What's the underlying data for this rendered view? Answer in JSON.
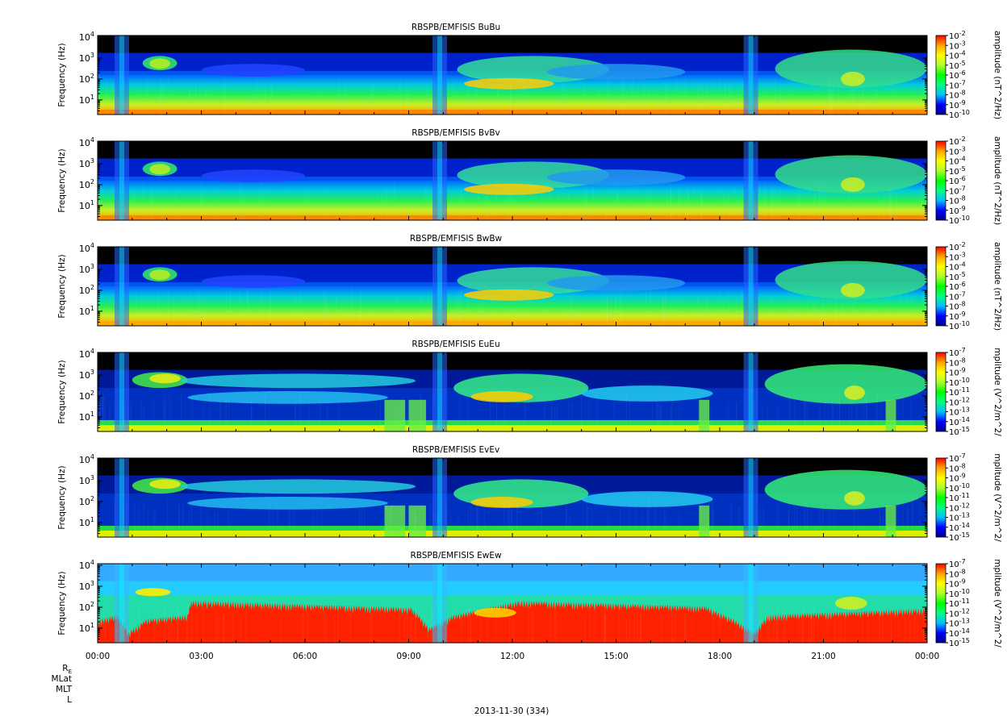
{
  "chart_data": [
    {
      "type": "heatmap",
      "title": "RBSPB/EMFISIS  BuBu",
      "ylabel": "Frequency (Hz)",
      "y_scale": "log",
      "ylim": [
        2,
        12000
      ],
      "y_ticks": [
        10,
        100,
        1000,
        10000
      ],
      "y_tick_labels": [
        "10",
        "10",
        "10",
        "10"
      ],
      "y_tick_exponents": [
        "1",
        "2",
        "3",
        "4"
      ],
      "colorbar": {
        "label": "amplitude (nT^2/Hz)",
        "scale": "log",
        "range": [
          1e-10,
          0.01
        ],
        "tick_exponents": [
          "-2",
          "-3",
          "-4",
          "-5",
          "-6",
          "-7",
          "-8",
          "-9",
          "-10"
        ],
        "colormap": [
          "#00008b",
          "#0000ff",
          "#00bfff",
          "#00ff7f",
          "#00ff00",
          "#adff2f",
          "#ffff00",
          "#ffa500",
          "#ff0000"
        ]
      },
      "panel_style": "mag"
    },
    {
      "type": "heatmap",
      "title": "RBSPB/EMFISIS  BvBv",
      "ylabel": "Frequency (Hz)",
      "y_scale": "log",
      "ylim": [
        2,
        12000
      ],
      "y_ticks": [
        10,
        100,
        1000,
        10000
      ],
      "y_tick_labels": [
        "10",
        "10",
        "10",
        "10"
      ],
      "y_tick_exponents": [
        "1",
        "2",
        "3",
        "4"
      ],
      "colorbar": {
        "label": "amplitude (nT^2/Hz)",
        "scale": "log",
        "range": [
          1e-10,
          0.01
        ],
        "tick_exponents": [
          "-2",
          "-3",
          "-4",
          "-5",
          "-6",
          "-7",
          "-8",
          "-9",
          "-10"
        ],
        "colormap": [
          "#00008b",
          "#0000ff",
          "#00bfff",
          "#00ff7f",
          "#00ff00",
          "#adff2f",
          "#ffff00",
          "#ffa500",
          "#ff0000"
        ]
      },
      "panel_style": "mag"
    },
    {
      "type": "heatmap",
      "title": "RBSPB/EMFISIS  BwBw",
      "ylabel": "Frequency (Hz)",
      "y_scale": "log",
      "ylim": [
        2,
        12000
      ],
      "y_ticks": [
        10,
        100,
        1000,
        10000
      ],
      "y_tick_labels": [
        "10",
        "10",
        "10",
        "10"
      ],
      "y_tick_exponents": [
        "1",
        "2",
        "3",
        "4"
      ],
      "colorbar": {
        "label": "amplitude (nT^2/Hz)",
        "scale": "log",
        "range": [
          1e-10,
          0.01
        ],
        "tick_exponents": [
          "-2",
          "-3",
          "-4",
          "-5",
          "-6",
          "-7",
          "-8",
          "-9",
          "-10"
        ],
        "colormap": [
          "#00008b",
          "#0000ff",
          "#00bfff",
          "#00ff7f",
          "#00ff00",
          "#adff2f",
          "#ffff00",
          "#ffa500",
          "#ff0000"
        ]
      },
      "panel_style": "mag_w"
    },
    {
      "type": "heatmap",
      "title": "RBSPB/EMFISIS  EuEu",
      "ylabel": "Frequency (Hz)",
      "y_scale": "log",
      "ylim": [
        2,
        12000
      ],
      "y_ticks": [
        10,
        100,
        1000,
        10000
      ],
      "y_tick_labels": [
        "10",
        "10",
        "10",
        "10"
      ],
      "y_tick_exponents": [
        "1",
        "2",
        "3",
        "4"
      ],
      "colorbar": {
        "label": "mplitude (V^2/m^2/",
        "scale": "log",
        "range": [
          1e-15,
          1e-07
        ],
        "tick_exponents": [
          "-7",
          "-8",
          "-9",
          "-10",
          "-11",
          "-12",
          "-13",
          "-14",
          "-15"
        ],
        "colormap": [
          "#00008b",
          "#0000ff",
          "#00bfff",
          "#00ff7f",
          "#00ff00",
          "#adff2f",
          "#ffff00",
          "#ffa500",
          "#ff0000"
        ]
      },
      "panel_style": "elec"
    },
    {
      "type": "heatmap",
      "title": "RBSPB/EMFISIS  EvEv",
      "ylabel": "Frequency (Hz)",
      "y_scale": "log",
      "ylim": [
        2,
        12000
      ],
      "y_ticks": [
        10,
        100,
        1000,
        10000
      ],
      "y_tick_labels": [
        "10",
        "10",
        "10",
        "10"
      ],
      "y_tick_exponents": [
        "1",
        "2",
        "3",
        "4"
      ],
      "colorbar": {
        "label": "mplitude (V^2/m^2/",
        "scale": "log",
        "range": [
          1e-15,
          1e-07
        ],
        "tick_exponents": [
          "-7",
          "-8",
          "-9",
          "-10",
          "-11",
          "-12",
          "-13",
          "-14",
          "-15"
        ],
        "colormap": [
          "#00008b",
          "#0000ff",
          "#00bfff",
          "#00ff7f",
          "#00ff00",
          "#adff2f",
          "#ffff00",
          "#ffa500",
          "#ff0000"
        ]
      },
      "panel_style": "elec"
    },
    {
      "type": "heatmap",
      "title": "RBSPB/EMFISIS  EwEw",
      "ylabel": "Frequency (Hz)",
      "y_scale": "log",
      "ylim": [
        2,
        12000
      ],
      "y_ticks": [
        10,
        100,
        1000,
        10000
      ],
      "y_tick_labels": [
        "10",
        "10",
        "10",
        "10"
      ],
      "y_tick_exponents": [
        "1",
        "2",
        "3",
        "4"
      ],
      "colorbar": {
        "label": "mplitude (V^2/m^2/",
        "scale": "log",
        "range": [
          1e-15,
          1e-07
        ],
        "tick_exponents": [
          "-7",
          "-8",
          "-9",
          "-10",
          "-11",
          "-12",
          "-13",
          "-14",
          "-15"
        ],
        "colormap": [
          "#00008b",
          "#0000ff",
          "#00bfff",
          "#00ff7f",
          "#00ff00",
          "#adff2f",
          "#ffff00",
          "#ffa500",
          "#ff0000"
        ]
      },
      "panel_style": "elec_w"
    }
  ],
  "x_axis": {
    "tick_labels": [
      "00:00",
      "03:00",
      "06:00",
      "09:00",
      "12:00",
      "15:00",
      "18:00",
      "21:00",
      "00:00"
    ],
    "row_labels": [
      "R",
      "MLat",
      "MLT",
      "L"
    ],
    "re_subscript": "E",
    "date_label": "2013-11-30 (334)"
  }
}
